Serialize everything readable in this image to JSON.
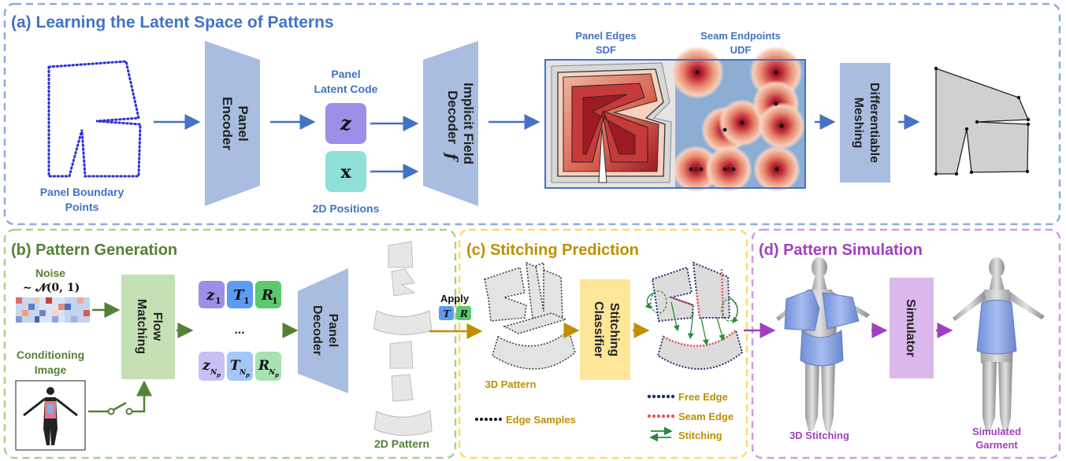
{
  "section_a": {
    "title": "(a) Learning the Latent Space of Patterns"
  },
  "section_b": {
    "title": "(b) Pattern Generation"
  },
  "section_c": {
    "title": "(c) Stitching Prediction"
  },
  "section_d": {
    "title": "(d) Pattern Simulation"
  },
  "a": {
    "boundary_label_1": "Panel Boundary",
    "boundary_label_2": "Points",
    "encoder_1": "Panel",
    "encoder_2": "Encoder",
    "latent_label_1": "Panel",
    "latent_label_2": "Latent Code",
    "z_symbol": "z",
    "x_symbol": "x",
    "positions_label": "2D Positions",
    "decoder_1": "Implicit Field",
    "decoder_2": "Decoder",
    "decoder_f": "f",
    "sdf_label_1": "Panel Edges",
    "sdf_label_2": "SDF",
    "udf_label_1": "Seam Endpoints",
    "udf_label_2": "UDF",
    "meshing_1": "Differentiable",
    "meshing_2": "Meshing"
  },
  "b": {
    "noise_label": "Noise",
    "noise_formula": "~ 𝓝(0, 1)",
    "conditioning_1": "Conditioning",
    "conditioning_2": "Image",
    "flow_1": "Flow",
    "flow_2": "Matching",
    "z1": "z",
    "z1_sub": "1",
    "t1": "T",
    "t1_sub": "1",
    "r1": "R",
    "r1_sub": "1",
    "ellipsis": "...",
    "zn": "z",
    "tn": "T",
    "rn": "R",
    "n_sub": "N",
    "p_sub": "p",
    "decoder_1": "Panel",
    "decoder_2": "Decoder",
    "pattern_2d": "2D Pattern"
  },
  "c": {
    "apply": "Apply",
    "apply_t": "T",
    "apply_r": "R",
    "pattern_3d": "3D Pattern",
    "classifier_1": "Stitching",
    "classifier_2": "Classifier",
    "edge_samples": "Edge Samples",
    "free_edge": "Free Edge",
    "seam_edge": "Seam Edge",
    "stitching": "Stitching"
  },
  "d": {
    "stitching_3d": "3D Stitching",
    "simulator": "Simulator",
    "garment_1": "Simulated",
    "garment_2": "Garment"
  },
  "colors": {
    "blue": "#4472c4",
    "green": "#538135",
    "gold": "#bf8f00",
    "purple": "#a040c0",
    "trapezoid": "#a9bde0",
    "z_box": "#9b8fe8",
    "x_box": "#8fe0d8"
  }
}
